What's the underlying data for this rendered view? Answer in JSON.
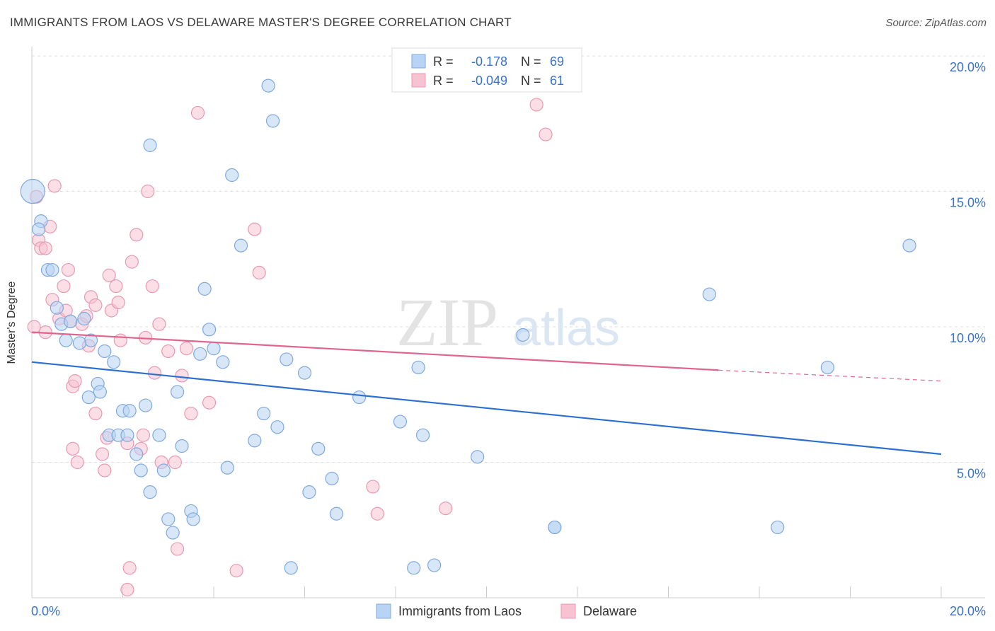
{
  "title": "IMMIGRANTS FROM LAOS VS DELAWARE MASTER'S DEGREE CORRELATION CHART",
  "source": "Source: ZipAtlas.com",
  "watermark": {
    "zip": "ZIP",
    "atlas": "atlas"
  },
  "colors": {
    "blue_fill": "#b8d3f3",
    "blue_stroke": "#7fa9dd",
    "blue_line": "#2c6fd1",
    "pink_fill": "#f7c2d2",
    "pink_stroke": "#e899b3",
    "pink_line": "#e0648e",
    "axis_text": "#3a72c8",
    "grid": "#dddddd"
  },
  "legend": {
    "rows": [
      {
        "r_label": "R =",
        "r_value": "-0.178",
        "n_label": "N =",
        "n_value": "69"
      },
      {
        "r_label": "R =",
        "r_value": "-0.049",
        "n_label": "N =",
        "n_value": "61"
      }
    ]
  },
  "bottom_legend": [
    "Immigrants from Laos",
    "Delaware"
  ],
  "chart_data": {
    "type": "scatter",
    "title": "IMMIGRANTS FROM LAOS VS DELAWARE MASTER'S DEGREE CORRELATION CHART",
    "xlabel": "",
    "ylabel": "Master's Degree",
    "xlim": [
      0,
      20
    ],
    "ylim": [
      0,
      20
    ],
    "x_tick_labels": [
      "0.0%",
      "20.0%"
    ],
    "y_tick_labels": [
      "5.0%",
      "10.0%",
      "15.0%",
      "20.0%"
    ],
    "y_ticks": [
      5,
      10,
      15,
      20
    ],
    "grid": true,
    "legend_position": "top-center",
    "series": [
      {
        "name": "Immigrants from Laos",
        "r": -0.178,
        "n": 69,
        "trend": {
          "x0": 0,
          "y0": 8.7,
          "x1": 20,
          "y1": 5.3
        },
        "points": [
          [
            0.02,
            15.0
          ],
          [
            0.2,
            13.9
          ],
          [
            0.15,
            13.6
          ],
          [
            0.35,
            12.1
          ],
          [
            0.45,
            12.1
          ],
          [
            0.55,
            10.7
          ],
          [
            0.65,
            10.1
          ],
          [
            0.85,
            10.2
          ],
          [
            1.15,
            10.3
          ],
          [
            1.3,
            9.5
          ],
          [
            0.75,
            9.5
          ],
          [
            1.05,
            9.4
          ],
          [
            1.6,
            9.1
          ],
          [
            1.8,
            8.7
          ],
          [
            1.45,
            7.9
          ],
          [
            1.5,
            7.6
          ],
          [
            1.25,
            7.4
          ],
          [
            2.0,
            6.9
          ],
          [
            2.15,
            6.9
          ],
          [
            2.5,
            7.1
          ],
          [
            1.7,
            6.0
          ],
          [
            1.9,
            6.0
          ],
          [
            2.1,
            6.0
          ],
          [
            2.8,
            6.0
          ],
          [
            2.3,
            5.3
          ],
          [
            2.4,
            4.7
          ],
          [
            2.9,
            4.7
          ],
          [
            2.6,
            3.9
          ],
          [
            3.3,
            5.6
          ],
          [
            3.2,
            7.6
          ],
          [
            2.6,
            16.7
          ],
          [
            3.0,
            2.9
          ],
          [
            3.1,
            2.4
          ],
          [
            3.5,
            3.2
          ],
          [
            3.55,
            2.9
          ],
          [
            3.7,
            9.0
          ],
          [
            3.8,
            11.4
          ],
          [
            3.9,
            9.9
          ],
          [
            4.0,
            9.2
          ],
          [
            4.2,
            8.7
          ],
          [
            4.3,
            4.8
          ],
          [
            4.4,
            15.6
          ],
          [
            4.6,
            13.0
          ],
          [
            4.9,
            5.8
          ],
          [
            5.1,
            6.8
          ],
          [
            5.2,
            18.9
          ],
          [
            5.3,
            17.6
          ],
          [
            5.4,
            6.3
          ],
          [
            5.6,
            8.8
          ],
          [
            5.7,
            1.1
          ],
          [
            6.0,
            8.3
          ],
          [
            6.1,
            3.9
          ],
          [
            6.3,
            5.5
          ],
          [
            6.6,
            4.4
          ],
          [
            6.7,
            3.1
          ],
          [
            7.2,
            7.4
          ],
          [
            8.1,
            6.5
          ],
          [
            8.4,
            1.1
          ],
          [
            8.5,
            8.5
          ],
          [
            8.6,
            6.0
          ],
          [
            8.85,
            1.2
          ],
          [
            9.8,
            5.2
          ],
          [
            10.8,
            9.7
          ],
          [
            11.5,
            2.6
          ],
          [
            14.9,
            11.2
          ],
          [
            16.4,
            2.6
          ],
          [
            17.5,
            8.5
          ],
          [
            19.3,
            13.0
          ],
          [
            11.5,
            2.6
          ]
        ]
      },
      {
        "name": "Delaware",
        "r": -0.049,
        "n": 61,
        "trend": {
          "x0": 0,
          "y0": 9.8,
          "x1": 15.1,
          "y1": 8.4,
          "dash_x1": 20,
          "dash_y1": 8.0
        },
        "points": [
          [
            0.1,
            14.8
          ],
          [
            0.15,
            13.2
          ],
          [
            0.2,
            12.9
          ],
          [
            0.3,
            12.9
          ],
          [
            0.4,
            13.7
          ],
          [
            0.5,
            15.2
          ],
          [
            0.3,
            9.8
          ],
          [
            0.45,
            11.0
          ],
          [
            0.6,
            10.3
          ],
          [
            0.7,
            11.5
          ],
          [
            0.75,
            10.6
          ],
          [
            0.85,
            10.2
          ],
          [
            0.9,
            7.8
          ],
          [
            0.95,
            8.0
          ],
          [
            0.9,
            5.5
          ],
          [
            1.0,
            5.0
          ],
          [
            1.1,
            10.1
          ],
          [
            1.2,
            10.4
          ],
          [
            1.25,
            9.3
          ],
          [
            1.3,
            11.1
          ],
          [
            1.4,
            10.8
          ],
          [
            1.4,
            6.8
          ],
          [
            1.55,
            5.3
          ],
          [
            1.6,
            4.7
          ],
          [
            1.65,
            5.9
          ],
          [
            1.7,
            11.9
          ],
          [
            1.75,
            10.6
          ],
          [
            1.85,
            11.5
          ],
          [
            1.9,
            10.9
          ],
          [
            1.95,
            9.5
          ],
          [
            2.1,
            5.7
          ],
          [
            2.1,
            0.3
          ],
          [
            2.15,
            1.1
          ],
          [
            2.2,
            12.4
          ],
          [
            2.3,
            13.4
          ],
          [
            2.4,
            5.5
          ],
          [
            2.45,
            6.0
          ],
          [
            2.5,
            9.6
          ],
          [
            2.55,
            15.0
          ],
          [
            2.65,
            11.5
          ],
          [
            2.7,
            8.3
          ],
          [
            2.8,
            10.1
          ],
          [
            2.85,
            5.0
          ],
          [
            3.0,
            9.1
          ],
          [
            3.15,
            5.0
          ],
          [
            3.2,
            1.8
          ],
          [
            3.3,
            8.2
          ],
          [
            3.4,
            9.2
          ],
          [
            3.5,
            6.8
          ],
          [
            3.65,
            17.9
          ],
          [
            3.9,
            7.2
          ],
          [
            4.5,
            1.0
          ],
          [
            4.9,
            13.6
          ],
          [
            5.0,
            12.0
          ],
          [
            7.5,
            4.1
          ],
          [
            7.6,
            3.1
          ],
          [
            9.1,
            3.3
          ],
          [
            11.1,
            18.2
          ],
          [
            11.3,
            17.1
          ],
          [
            0.05,
            10.0
          ],
          [
            0.8,
            12.1
          ]
        ]
      }
    ]
  }
}
